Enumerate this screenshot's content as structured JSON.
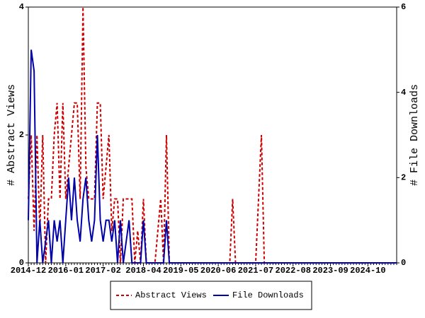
{
  "chart_data": {
    "type": "line",
    "y_label": "# Abstract Views",
    "y2_label": "# File Downloads",
    "categories": [
      "2014-12",
      null,
      null,
      null,
      null,
      null,
      null,
      null,
      null,
      null,
      null,
      null,
      null,
      "2016-01",
      null,
      null,
      null,
      null,
      null,
      null,
      null,
      null,
      null,
      null,
      null,
      null,
      "2017-02",
      null,
      null,
      null,
      null,
      null,
      null,
      null,
      null,
      null,
      null,
      null,
      null,
      null,
      "2018-04",
      null,
      null,
      null,
      null,
      null,
      null,
      null,
      null,
      null,
      null,
      null,
      null,
      "2019-05",
      null,
      null,
      null,
      null,
      null,
      null,
      null,
      null,
      null,
      null,
      null,
      null,
      "2020-06",
      null,
      null,
      null,
      null,
      null,
      null,
      null,
      null,
      null,
      null,
      null,
      null,
      "2021-07",
      null,
      null,
      null,
      null,
      null,
      null,
      null,
      null,
      null,
      null,
      null,
      null,
      "2022-08",
      null,
      null,
      null,
      null,
      null,
      null,
      null,
      null,
      null,
      null,
      null,
      null,
      "2023-09",
      null,
      null,
      null,
      null,
      null,
      null,
      null,
      null,
      null,
      null,
      null,
      null,
      "2024-10",
      null,
      null,
      null,
      null,
      null,
      null,
      null,
      null,
      null,
      null
    ],
    "series": [
      {
        "name": "Abstract Views",
        "color": "#cc0000",
        "dashed": true,
        "axis": "y",
        "values": [
          1,
          2,
          0.5,
          2,
          0.5,
          2,
          0,
          1,
          1,
          2,
          2.5,
          1,
          2.5,
          1,
          1.5,
          2,
          2.5,
          2.5,
          1,
          4,
          1.5,
          1,
          1,
          1,
          2.5,
          2.5,
          1,
          1.5,
          2,
          0.5,
          1,
          1,
          0,
          1,
          1,
          1,
          1,
          0,
          0.5,
          0,
          1,
          0,
          0,
          0,
          0,
          0.5,
          1,
          0,
          2,
          0,
          0,
          0,
          0,
          0,
          0,
          0,
          0,
          0,
          0,
          0,
          0,
          0,
          0,
          0,
          0,
          0,
          0,
          0,
          0,
          0,
          0,
          1,
          0,
          0,
          0,
          0,
          0,
          0,
          0,
          0,
          1,
          2,
          0,
          0,
          0,
          0,
          0,
          0,
          0,
          0,
          0,
          0,
          0,
          0,
          0,
          0,
          0,
          0,
          0,
          0,
          0,
          0,
          0,
          0,
          0,
          0,
          0,
          0,
          0,
          0,
          0,
          0,
          0,
          0,
          0,
          0,
          0,
          0,
          0,
          0,
          0,
          0,
          0,
          0,
          0,
          0,
          0,
          0,
          0
        ]
      },
      {
        "name": "File Downloads",
        "color": "#0000aa",
        "dashed": false,
        "axis": "y2",
        "values": [
          1,
          5,
          4.5,
          0,
          1,
          0,
          0.5,
          1,
          0,
          1,
          0.5,
          1,
          0,
          1,
          2,
          1,
          2,
          1,
          0.5,
          1.5,
          2,
          1,
          0.5,
          1,
          3,
          1,
          0.5,
          1,
          1,
          0.5,
          1,
          0,
          1,
          0,
          0.5,
          1,
          0,
          0,
          0,
          0,
          1,
          0,
          0,
          0,
          0,
          0,
          0,
          0,
          1,
          0,
          0,
          0,
          0,
          0,
          0,
          0,
          0,
          0,
          0,
          0,
          0,
          0,
          0,
          0,
          0,
          0,
          0,
          0,
          0,
          0,
          0,
          0,
          0,
          0,
          0,
          0,
          0,
          0,
          0,
          0,
          0,
          0,
          0,
          0,
          0,
          0,
          0,
          0,
          0,
          0,
          0,
          0,
          0,
          0,
          0,
          0,
          0,
          0,
          0,
          0,
          0,
          0,
          0,
          0,
          0,
          0,
          0,
          0,
          0,
          0,
          0,
          0,
          0,
          0,
          0,
          0,
          0,
          0,
          0,
          0,
          0,
          0,
          0,
          0,
          0,
          0,
          0,
          0,
          0
        ]
      }
    ],
    "ylim": [
      0,
      4
    ],
    "yticks": [
      0,
      2,
      4
    ],
    "y2lim": [
      0,
      6
    ],
    "y2ticks": [
      0,
      2,
      4,
      6
    ]
  }
}
